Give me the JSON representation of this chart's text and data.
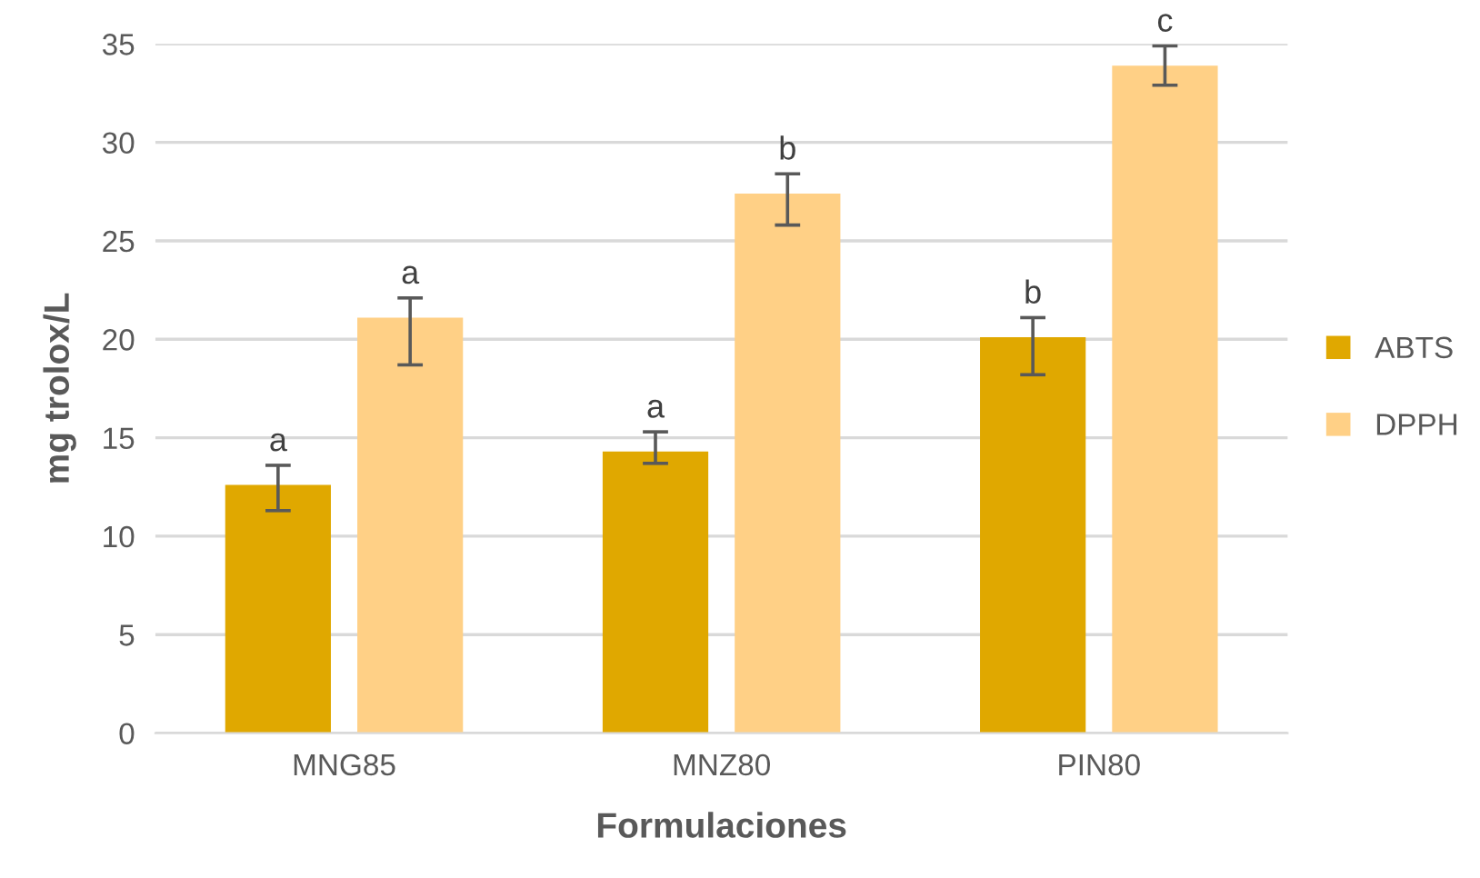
{
  "chart_data": {
    "type": "bar",
    "xlabel": "Formulaciones",
    "ylabel": "mg trolox/L",
    "categories": [
      "MNG85",
      "MNZ80",
      "PIN80"
    ],
    "series": [
      {
        "name": "ABTS",
        "color": "#e0a800",
        "values": [
          12.6,
          14.3,
          20.1
        ],
        "errors": [
          [
            11.3,
            13.6
          ],
          [
            13.7,
            15.3
          ],
          [
            18.2,
            21.1
          ]
        ]
      },
      {
        "name": "DPPH",
        "color": "#ffd086",
        "values": [
          21.1,
          27.4,
          33.9
        ],
        "errors": [
          [
            18.7,
            22.1
          ],
          [
            25.8,
            28.4
          ],
          [
            32.9,
            34.9
          ]
        ]
      }
    ],
    "annotations": [
      "a",
      "a",
      "a",
      "b",
      "b",
      "c"
    ],
    "ylim": [
      0,
      35
    ],
    "yticks": [
      0,
      5,
      10,
      15,
      20,
      25,
      30,
      35
    ],
    "grid": "y",
    "legend": "right"
  }
}
